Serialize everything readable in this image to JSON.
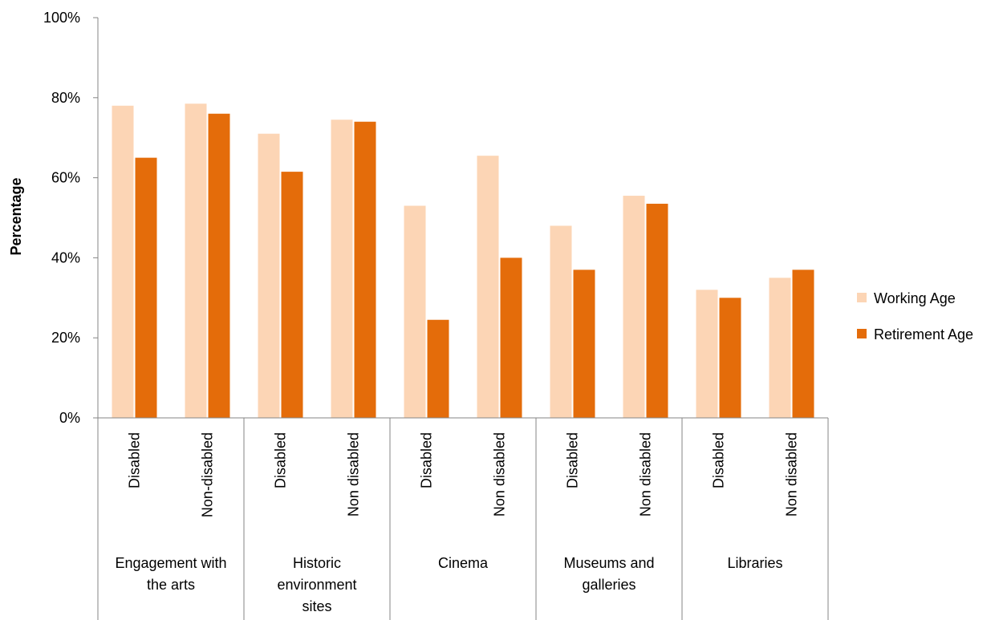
{
  "chart_data": {
    "type": "bar",
    "ylabel": "Percentage",
    "ylim": [
      0,
      100
    ],
    "y_ticks": [
      "0%",
      "20%",
      "40%",
      "60%",
      "80%",
      "100%"
    ],
    "grid": false,
    "legend_position": "right",
    "groups": [
      {
        "label_lines": [
          "Engagement with",
          "the arts"
        ],
        "categories": [
          "Disabled",
          "Non-disabled"
        ]
      },
      {
        "label_lines": [
          "Historic",
          "environment",
          "sites"
        ],
        "categories": [
          "Disabled",
          "Non disabled"
        ]
      },
      {
        "label_lines": [
          "Cinema"
        ],
        "categories": [
          "Disabled",
          "Non disabled"
        ]
      },
      {
        "label_lines": [
          "Museums and",
          "galleries"
        ],
        "categories": [
          "Disabled",
          "Non disabled"
        ]
      },
      {
        "label_lines": [
          "Libraries"
        ],
        "categories": [
          "Disabled",
          "Non disabled"
        ]
      }
    ],
    "series": [
      {
        "name": "Working Age",
        "color": "#FCD5B5",
        "values": [
          78,
          78.5,
          71,
          74.5,
          53,
          65.5,
          48,
          55.5,
          32,
          35
        ]
      },
      {
        "name": "Retirement Age",
        "color": "#E46C0A",
        "values": [
          65,
          76,
          61.5,
          74,
          24.5,
          40,
          37,
          53.5,
          30,
          37
        ]
      }
    ]
  }
}
